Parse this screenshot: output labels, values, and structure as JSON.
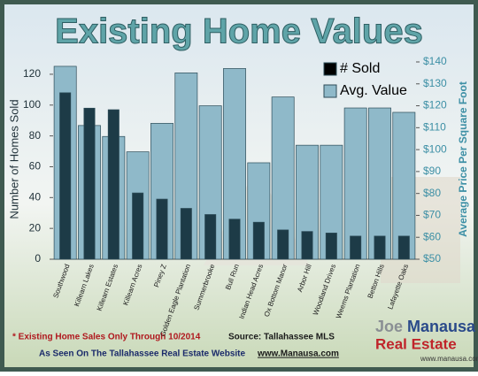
{
  "chart_data": {
    "type": "bar",
    "title": "Existing Home Values",
    "ylabel": "Number of Homes Sold",
    "y2label": "Average Price Per Square Foot",
    "categories": [
      "Southwood",
      "Killearn Lakes",
      "Killearn Estates",
      "Killearn Acres",
      "Piney Z",
      "Golden Eagle Plantation",
      "Summerbrooke",
      "Bull Run",
      "Indian Head Acres",
      "Ox Bottom Manor",
      "Arbor Hill",
      "Woodland Drives",
      "Weems Plantation",
      "Betton Hills",
      "Lafayette Oaks"
    ],
    "series": [
      {
        "name": "Avg. Value",
        "color": "#8fb9c9",
        "axis": "y2",
        "values": [
          138,
          111,
          106,
          99,
          112,
          135,
          120,
          137,
          94,
          124,
          102,
          102,
          119,
          119,
          117
        ]
      },
      {
        "name": "# Sold",
        "color": "#1d3b47",
        "values": [
          108,
          98,
          97,
          43,
          39,
          33,
          29,
          26,
          24,
          19,
          18,
          17,
          15,
          15,
          15
        ]
      }
    ],
    "ylim": [
      0,
      128
    ],
    "yticks": [
      0,
      20,
      40,
      60,
      80,
      100,
      120
    ],
    "y2lim": [
      50,
      140
    ],
    "y2ticks": [
      {
        "value": 50,
        "label": "$50"
      },
      {
        "value": 60,
        "label": "$60"
      },
      {
        "value": 70,
        "label": "$70"
      },
      {
        "value": 80,
        "label": "$80"
      },
      {
        "value": 90,
        "label": "$90"
      },
      {
        "value": 100,
        "label": "$100"
      },
      {
        "value": 110,
        "label": "$110"
      },
      {
        "value": 120,
        "label": "$120"
      },
      {
        "value": 130,
        "label": "$130"
      },
      {
        "value": 140,
        "label": "$140"
      }
    ],
    "legend": "top-right",
    "footnote": "* Existing Home Sales Only Through 10/2014",
    "source": "Source: Tallahassee MLS",
    "credit": "As Seen On The Tallahassee Real Estate Website",
    "credit_url": "www.Manausa.com",
    "logo": [
      "Joe",
      "Manausa",
      "Real Estate",
      "www.manausa.com"
    ]
  }
}
